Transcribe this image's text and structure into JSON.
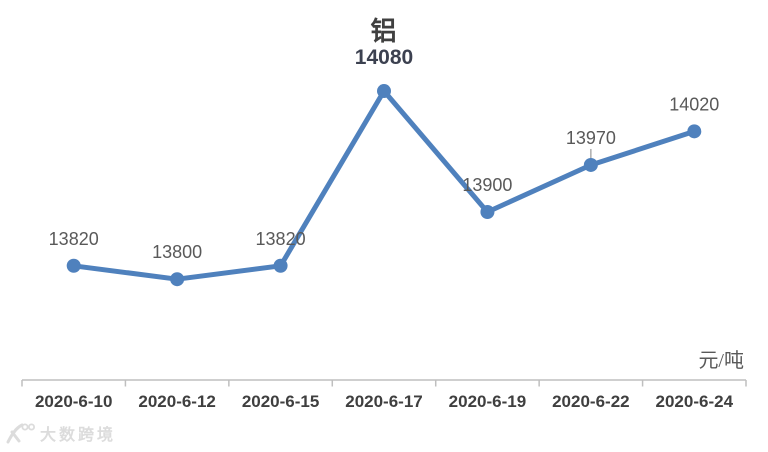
{
  "chart_data": {
    "type": "line",
    "title": "铝",
    "unit_label": "元/吨",
    "categories": [
      "2020-6-10",
      "2020-6-12",
      "2020-6-15",
      "2020-6-17",
      "2020-6-19",
      "2020-6-22",
      "2020-6-24"
    ],
    "values": [
      13820,
      13800,
      13820,
      14080,
      13900,
      13970,
      14020
    ],
    "data_labels": [
      "13820",
      "13800",
      "13820",
      "14080",
      "13900",
      "13970",
      "14020"
    ],
    "highlighted_index": 3,
    "leader_line_index": 5,
    "ylim": [
      13650,
      14150
    ],
    "grid": false,
    "legend_position": "none",
    "colors": {
      "line": "#4F81BD",
      "marker": "#4F81BD",
      "data_label": "#595959",
      "highlight_label": "#3C4150",
      "axis": "#BFBFBF",
      "tick_label": "#3F3F3F",
      "leader_line": "#A6A6A6"
    }
  },
  "watermark": {
    "text": "大数跨境"
  }
}
